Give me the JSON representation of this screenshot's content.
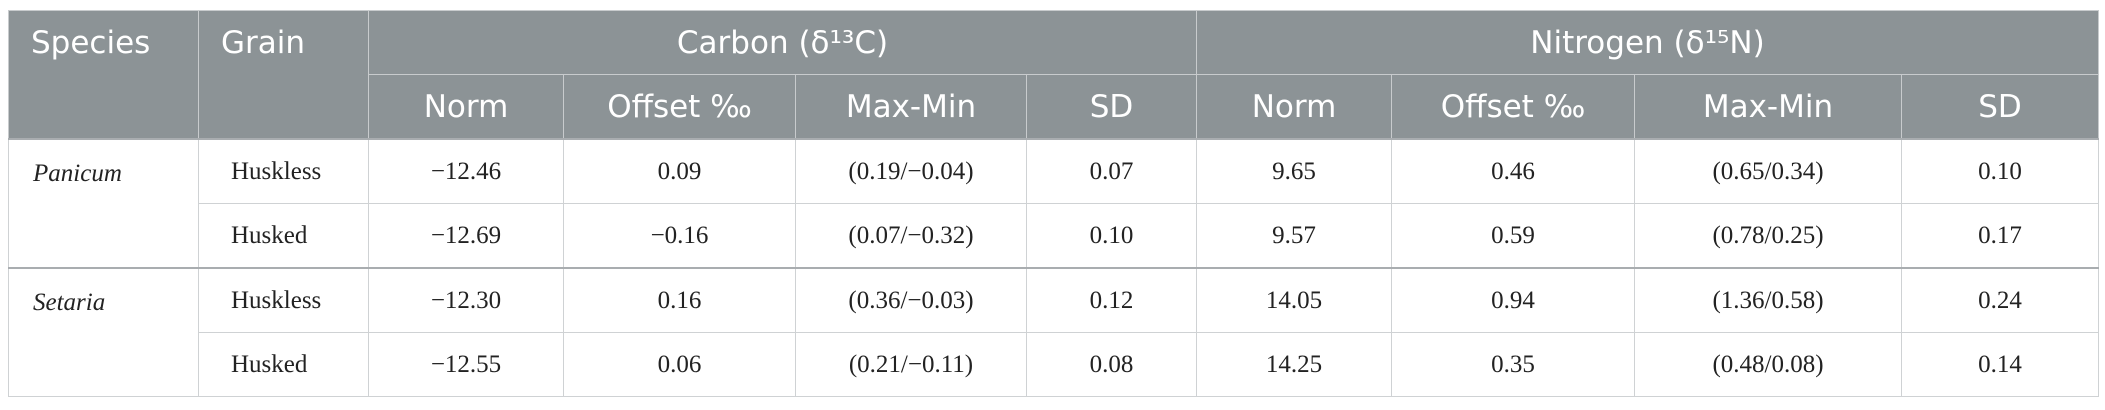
{
  "header": {
    "columns": [
      "Species",
      "Grain"
    ],
    "groups": [
      "Carbon (δ¹³C)",
      "Nitrogen (δ¹⁵N)"
    ],
    "subheaders": [
      "Norm",
      "Offset ‰",
      "Max-Min",
      "SD",
      "Norm",
      "Offset ‰",
      "Max-Min",
      "SD"
    ]
  },
  "table": {
    "groups": [
      {
        "species": "Panicum",
        "rows": [
          [
            "Huskless",
            "−12.46",
            "0.09",
            "(0.19/−0.04)",
            "0.07",
            "9.65",
            "0.46",
            "(0.65/0.34)",
            "0.10"
          ],
          [
            "Husked",
            "−12.69",
            "−0.16",
            "(0.07/−0.32)",
            "0.10",
            "9.57",
            "0.59",
            "(0.78/0.25)",
            "0.17"
          ]
        ]
      },
      {
        "species": "Setaria",
        "rows": [
          [
            "Huskless",
            "−12.30",
            "0.16",
            "(0.36/−0.03)",
            "0.12",
            "14.05",
            "0.94",
            "(1.36/0.58)",
            "0.24"
          ],
          [
            "Husked",
            "−12.55",
            "0.06",
            "(0.21/−0.11)",
            "0.08",
            "14.25",
            "0.35",
            "(0.48/0.08)",
            "0.14"
          ]
        ]
      }
    ]
  }
}
